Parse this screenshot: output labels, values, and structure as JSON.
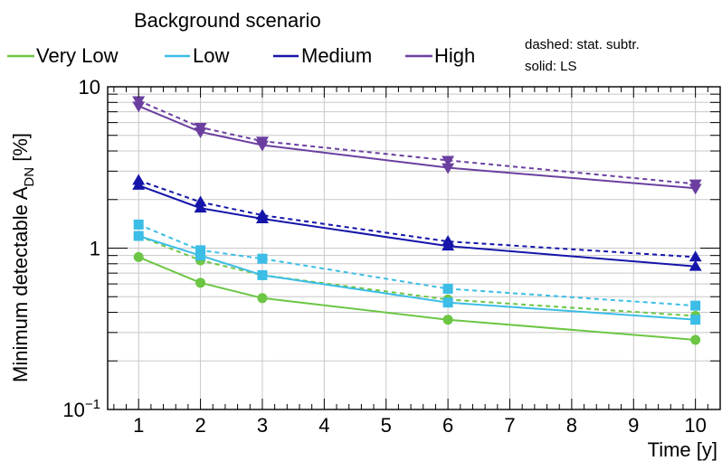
{
  "chart_data": {
    "type": "line",
    "xlabel": "Time [y]",
    "ylabel_main": "Minimum detectable A",
    "ylabel_sub": "DN",
    "ylabel_unit": " [%]",
    "x_scale": "linear",
    "y_scale": "log",
    "xlim": [
      0.5,
      10.4
    ],
    "ylim": [
      0.1,
      10
    ],
    "x_ticks": [
      1,
      2,
      3,
      4,
      5,
      6,
      7,
      8,
      9,
      10
    ],
    "x_tick_labels": [
      "1",
      "2",
      "3",
      "4",
      "5",
      "6",
      "7",
      "8",
      "9",
      "10"
    ],
    "y_tick_labels": [
      {
        "value": 0.1,
        "base": "10",
        "exp": "−1"
      },
      {
        "value": 1,
        "base": "1",
        "exp": ""
      },
      {
        "value": 10,
        "base": "10",
        "exp": ""
      }
    ],
    "grid": true,
    "legend": {
      "title": "Background scenario",
      "placement": "top",
      "note_line1": "dashed: stat. subtr.",
      "note_line2": "solid: LS"
    },
    "x": [
      1,
      2,
      3,
      6,
      10
    ],
    "series": [
      {
        "name": "Very Low",
        "color": "#6cc644",
        "marker": "circle",
        "solid": [
          0.88,
          0.61,
          0.49,
          0.36,
          0.27
        ],
        "dashed": [
          1.19,
          0.84,
          0.68,
          0.48,
          0.38
        ]
      },
      {
        "name": "Low",
        "color": "#3bbde6",
        "marker": "square",
        "solid": [
          1.19,
          0.9,
          0.68,
          0.46,
          0.36
        ],
        "dashed": [
          1.4,
          0.97,
          0.86,
          0.56,
          0.44
        ]
      },
      {
        "name": "Medium",
        "color": "#1515aa",
        "marker": "triangle-up",
        "solid": [
          2.45,
          1.77,
          1.52,
          1.03,
          0.77
        ],
        "dashed": [
          2.63,
          1.93,
          1.6,
          1.1,
          0.88
        ]
      },
      {
        "name": "High",
        "color": "#6b3fa0",
        "marker": "triangle-down",
        "solid": [
          7.6,
          5.25,
          4.35,
          3.15,
          2.35
        ],
        "dashed": [
          8.2,
          5.6,
          4.6,
          3.5,
          2.5
        ]
      }
    ]
  }
}
